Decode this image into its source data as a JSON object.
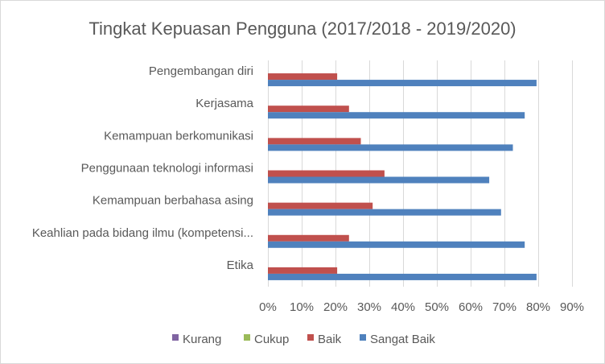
{
  "colors": {
    "Kurang": "#8064a2",
    "Cukup": "#9bbb59",
    "Baik": "#c0504d",
    "Sangat Baik": "#4f81bd",
    "grid": "#d9d9d9",
    "text": "#595959"
  },
  "chart_data": {
    "type": "bar",
    "orientation": "horizontal",
    "title": "Tingkat Kepuasan Pengguna (2017/2018 - 2019/2020)",
    "categories": [
      "Pengembangan diri",
      "Kerjasama",
      "Kemampuan berkomunikasi",
      "Penggunaan teknologi informasi",
      "Kemampuan berbahasa asing",
      "Keahlian pada bidang ilmu (kompetensi...",
      "Etika"
    ],
    "series": [
      {
        "name": "Kurang",
        "values": [
          0,
          0,
          0,
          0,
          0,
          0,
          0
        ]
      },
      {
        "name": "Cukup",
        "values": [
          0,
          0,
          0,
          0,
          0,
          0,
          0
        ]
      },
      {
        "name": "Baik",
        "values": [
          20.5,
          24,
          27.5,
          34.5,
          31,
          24,
          20.5
        ]
      },
      {
        "name": "Sangat Baik",
        "values": [
          79.5,
          76,
          72.5,
          65.5,
          69,
          76,
          79.5
        ]
      }
    ],
    "xlim": [
      0,
      90
    ],
    "xticks": [
      "0%",
      "10%",
      "20%",
      "30%",
      "40%",
      "50%",
      "60%",
      "70%",
      "80%",
      "90%"
    ],
    "grid": true,
    "legend": "bottom"
  }
}
